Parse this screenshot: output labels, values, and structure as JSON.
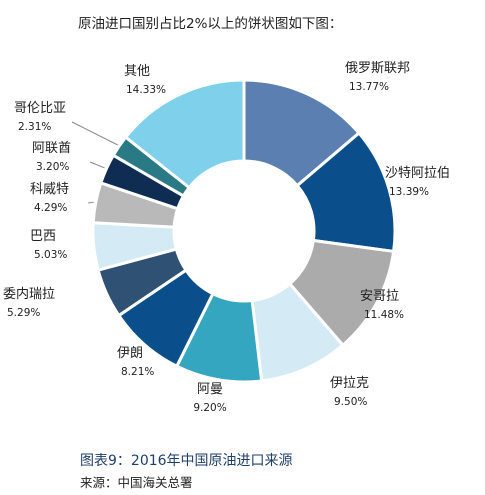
{
  "header_text": "原油进口国别占比2%以上的饼状图如下图：",
  "caption": "图表9：2016年中国原油进口来源",
  "source": "来源：中国海关总署",
  "chart_data": {
    "type": "pie",
    "donut": true,
    "title": "",
    "categories": [
      "俄罗斯联邦",
      "沙特阿拉伯",
      "安哥拉",
      "伊拉克",
      "阿曼",
      "伊朗",
      "委内瑞拉",
      "巴西",
      "科威特",
      "阿联酋",
      "哥伦比亚",
      "其他"
    ],
    "values": [
      13.77,
      13.39,
      11.48,
      9.5,
      9.2,
      8.21,
      5.29,
      5.03,
      4.29,
      3.2,
      2.31,
      14.33
    ],
    "labels": [
      "13.77%",
      "13.39%",
      "11.48%",
      "9.50%",
      "9.20%",
      "8.21%",
      "5.29%",
      "5.03%",
      "4.29%",
      "3.20%",
      "2.31%",
      "14.33%"
    ],
    "colors": [
      "#5b7fb0",
      "#0a4f8c",
      "#ababab",
      "#d4eaf4",
      "#35a6c0",
      "#0a4f8c",
      "#2f5274",
      "#d4eaf4",
      "#b9b9b9",
      "#0f2d52",
      "#2a7a86",
      "#7fd0eb"
    ]
  }
}
